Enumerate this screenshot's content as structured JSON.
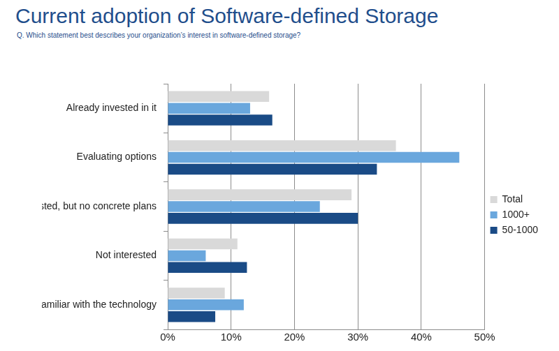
{
  "chart_data": {
    "type": "bar",
    "orientation": "horizontal",
    "title": "Current adoption of Software-defined Storage",
    "subtitle": "Q. Which statement best describes your organization’s interest in software-defined storage?",
    "categories": [
      "Already invested in it",
      "Evaluating options",
      "Interested, but no concrete plans",
      "Not interested",
      "Not familiar with the technology"
    ],
    "series": [
      {
        "name": "Total",
        "color": "#d9d9d9",
        "values": [
          16,
          36,
          29,
          11,
          9
        ]
      },
      {
        "name": "1000+",
        "color": "#6aa7dd",
        "values": [
          13,
          46,
          24,
          6,
          12
        ]
      },
      {
        "name": "50-1000",
        "color": "#1a4b86",
        "values": [
          16.5,
          33,
          30,
          12.5,
          7.5
        ]
      }
    ],
    "xlim": [
      0,
      50
    ],
    "xticks": [
      {
        "value": 0,
        "label": "0%"
      },
      {
        "value": 10,
        "label": "10%"
      },
      {
        "value": 20,
        "label": "20%"
      },
      {
        "value": 30,
        "label": "30%"
      },
      {
        "value": 40,
        "label": "40%"
      },
      {
        "value": 50,
        "label": "50%"
      }
    ],
    "grid": true,
    "legend": "right"
  }
}
